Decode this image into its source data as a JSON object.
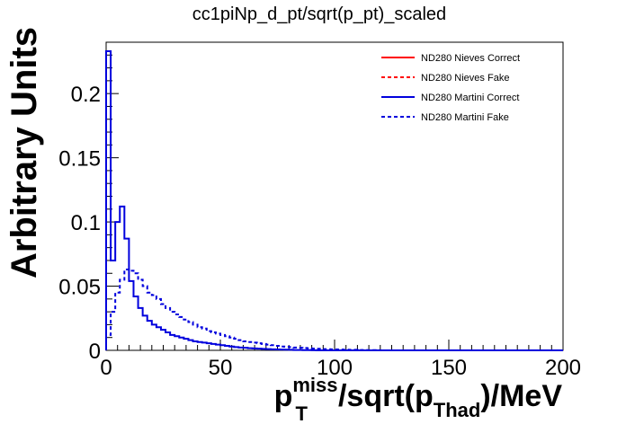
{
  "chart_data": {
    "type": "line",
    "title": "cc1piNp_d_pt/sqrt(p_pt)_scaled",
    "ylabel": "Arbitrary Units",
    "xlabel": {
      "base": "p",
      "sup": "miss",
      "sub": "T",
      "mid": "/sqrt(p",
      "sub2": "Thad",
      "tail": ")/MeV"
    },
    "xlim": [
      0,
      200
    ],
    "ylim": [
      0,
      0.24
    ],
    "x_ticks": [
      0,
      50,
      100,
      150,
      200
    ],
    "x_tick_labels": [
      "0",
      "50",
      "100",
      "150",
      "200"
    ],
    "y_ticks": [
      0,
      0.05,
      0.1,
      0.15,
      0.2
    ],
    "y_tick_labels": [
      "0",
      "0.05",
      "0.1",
      "0.15",
      "0.2"
    ],
    "legend_position": "top-right",
    "grid": false,
    "bin_width": 2,
    "series": [
      {
        "name": "ND280 Nieves Correct",
        "color": "#ff0000",
        "style": "solid",
        "values": []
      },
      {
        "name": "ND280 Nieves Fake",
        "color": "#ff0000",
        "style": "dashed",
        "values": []
      },
      {
        "name": "ND280 Martini Correct",
        "color": "#0000dd",
        "style": "solid",
        "values": [
          0.233,
          0.07,
          0.1,
          0.112,
          0.087,
          0.054,
          0.042,
          0.033,
          0.027,
          0.023,
          0.02,
          0.018,
          0.016,
          0.014,
          0.012,
          0.011,
          0.01,
          0.009,
          0.008,
          0.007,
          0.0065,
          0.006,
          0.0055,
          0.005,
          0.0045,
          0.004,
          0.0035,
          0.003,
          0.0025,
          0.0022,
          0.002,
          0.0017,
          0.0015,
          0.0013,
          0.0011,
          0.001,
          0.0008,
          0.0007,
          0.0006,
          0.0005,
          0.0004,
          0.0003,
          0.0003,
          0.0002,
          0.0002,
          0.0001
        ]
      },
      {
        "name": "ND280 Martini Fake",
        "color": "#0000dd",
        "style": "dashed",
        "values": [
          0.012,
          0.03,
          0.045,
          0.055,
          0.063,
          0.062,
          0.06,
          0.055,
          0.05,
          0.045,
          0.043,
          0.04,
          0.036,
          0.033,
          0.03,
          0.028,
          0.026,
          0.024,
          0.022,
          0.02,
          0.018,
          0.017,
          0.015,
          0.014,
          0.013,
          0.012,
          0.011,
          0.01,
          0.009,
          0.008,
          0.007,
          0.0065,
          0.006,
          0.0055,
          0.005,
          0.0045,
          0.004,
          0.0035,
          0.003,
          0.0028,
          0.0025,
          0.0022,
          0.002,
          0.0018,
          0.0016,
          0.0014,
          0.0012,
          0.001,
          0.0009,
          0.0008,
          0.0007,
          0.0006,
          0.0005,
          0.0004,
          0.0004,
          0.0003,
          0.0003,
          0.0002,
          0.0002,
          0.0001
        ]
      }
    ]
  }
}
